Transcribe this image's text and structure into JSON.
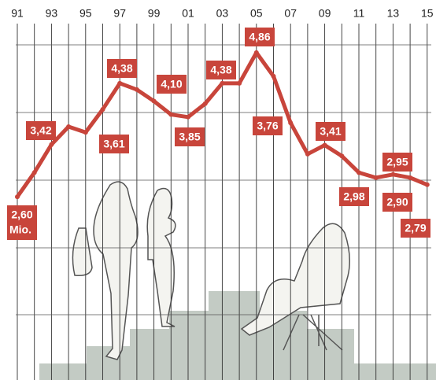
{
  "chart_data": {
    "type": "line",
    "categories": [
      "91",
      null,
      "93",
      null,
      "95",
      null,
      "97",
      null,
      "99",
      null,
      "01",
      null,
      "03",
      null,
      "05",
      null,
      "07",
      null,
      "09",
      null,
      "11",
      null,
      "13",
      null,
      "15"
    ],
    "values": [
      2.6,
      2.98,
      3.42,
      3.7,
      3.61,
      3.97,
      4.38,
      4.28,
      4.1,
      3.89,
      3.85,
      4.06,
      4.38,
      4.38,
      4.86,
      4.49,
      3.76,
      3.27,
      3.41,
      3.24,
      2.98,
      2.9,
      2.95,
      2.9,
      2.79
    ],
    "value_labels": [
      "2,60",
      null,
      "3,42",
      null,
      "3,61",
      null,
      "4,38",
      null,
      "4,10",
      null,
      "3,85",
      null,
      "4,38",
      null,
      "4,86",
      null,
      "3,76",
      null,
      "3,41",
      null,
      "2,98",
      null,
      "2,95",
      "2,90",
      "2,79"
    ],
    "unit_label": "Mio.",
    "color": "#c8453b",
    "ylim": [
      0,
      5.5
    ]
  }
}
